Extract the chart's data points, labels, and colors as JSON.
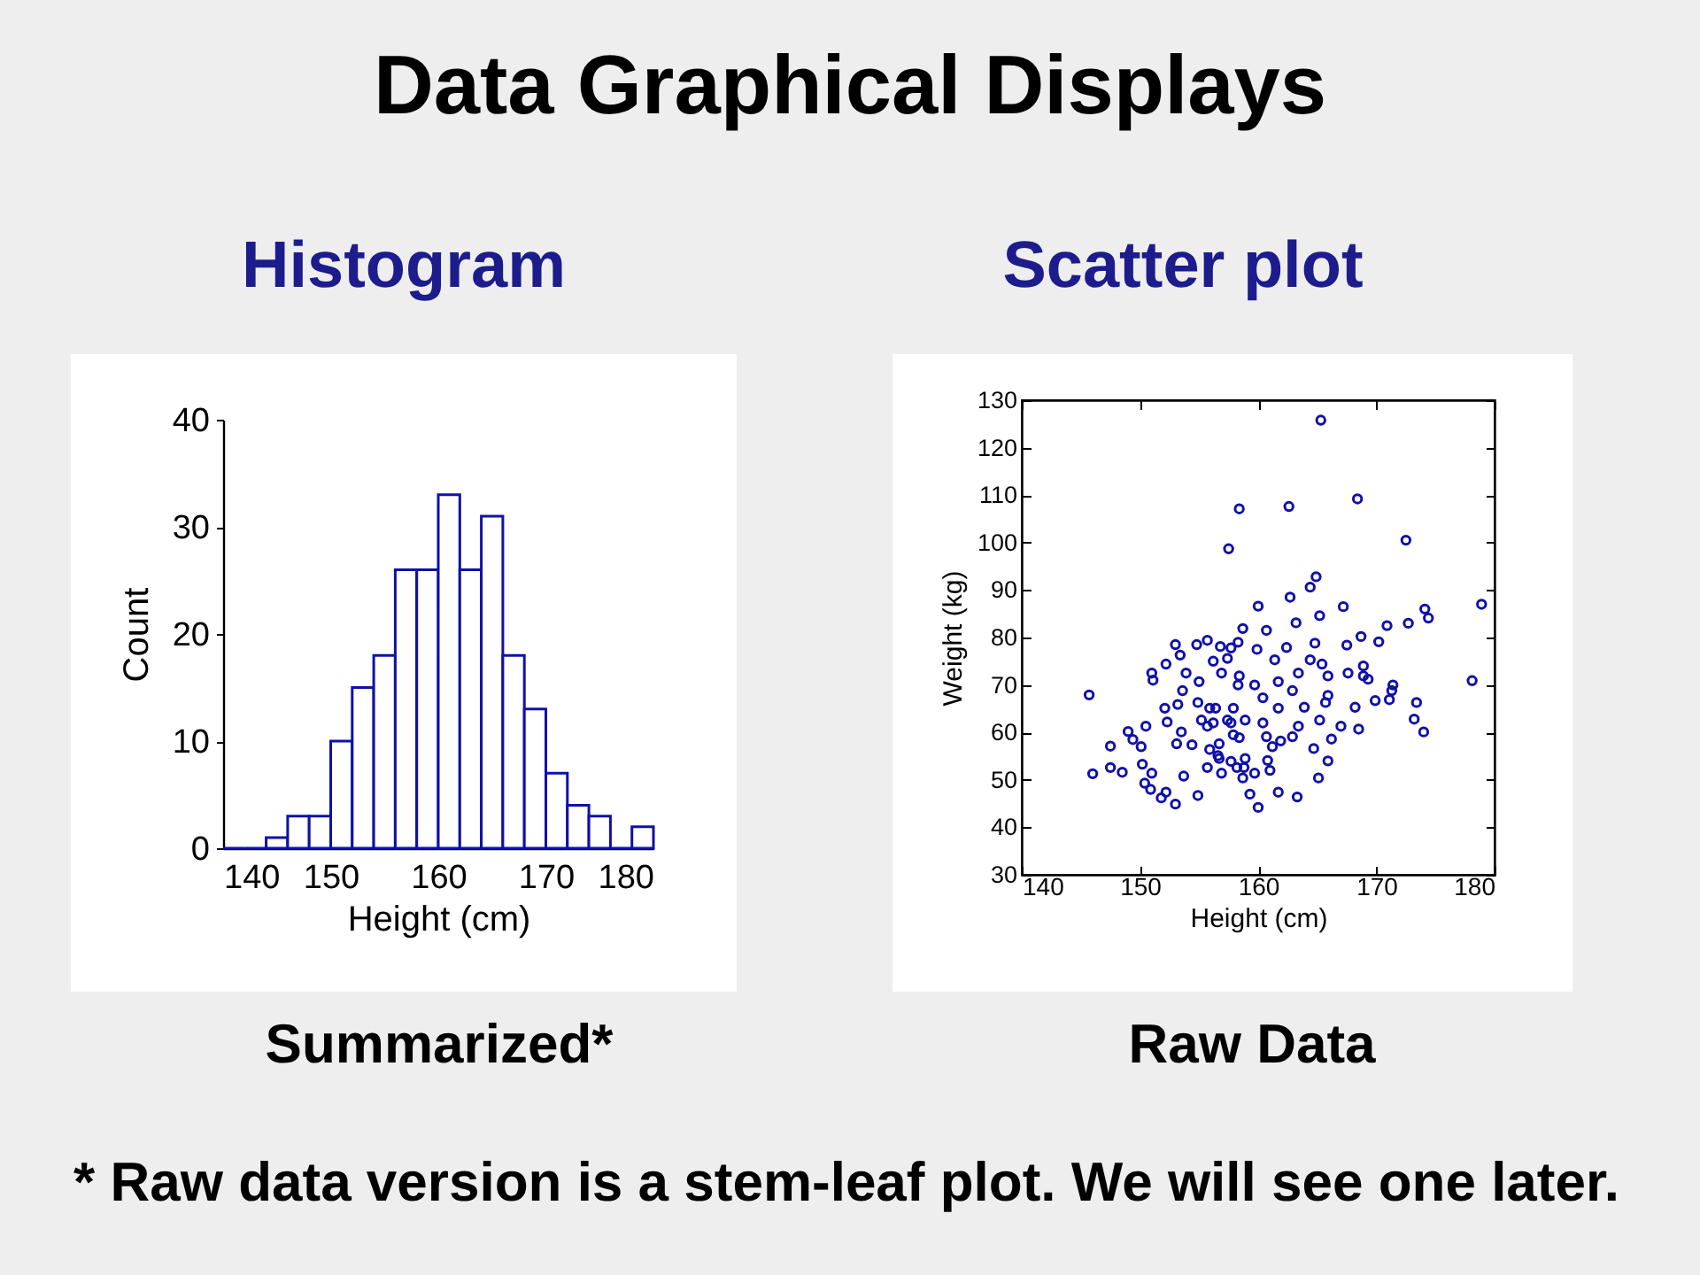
{
  "chart_data": [
    {
      "type": "other",
      "title": "Data Graphical Displays"
    },
    {
      "type": "histogram",
      "title": "Histogram",
      "xlabel": "Height (cm)",
      "ylabel": "Count",
      "color": "#1010a8",
      "bins": [
        140,
        142,
        144,
        146,
        148,
        150,
        152,
        154,
        156,
        158,
        160,
        162,
        164,
        166,
        168,
        170,
        172,
        174,
        176,
        178,
        180
      ],
      "values": [
        0,
        0,
        1,
        3,
        3,
        10,
        15,
        18,
        26,
        26,
        33,
        26,
        31,
        18,
        13,
        7,
        4,
        3,
        0,
        2
      ],
      "xlim": [
        140,
        180
      ],
      "xticks": [
        140,
        150,
        160,
        170,
        180
      ],
      "ylim": [
        0,
        40
      ],
      "yticks": [
        0,
        10,
        20,
        30,
        40
      ],
      "annotations": [
        "Summarized*",
        "* Raw data version is a stem-leaf plot. We will see one later."
      ]
    },
    {
      "type": "scatter",
      "title": "Scatter plot",
      "xlabel": "Height (cm)",
      "ylabel": "Weight (kg)",
      "color": "#1010a8",
      "marker": "circle",
      "x": [
        145.7,
        146.0,
        147.5,
        147.5,
        148.5,
        149.0,
        149.4,
        150.1,
        150.5,
        150.2,
        150.4,
        151.0,
        150.9,
        151.0,
        151.1,
        152.2,
        152.1,
        152.3,
        152.2,
        151.8,
        153.0,
        153.0,
        153.4,
        153.6,
        153.2,
        153.1,
        153.7,
        153.9,
        153.5,
        154.8,
        155.0,
        154.9,
        154.9,
        154.4,
        155.2,
        155.7,
        155.9,
        156.2,
        155.7,
        156.8,
        156.2,
        156.6,
        156.7,
        156.9,
        157.4,
        157.7,
        157.5,
        158.4,
        157.4,
        157.7,
        158.2,
        158.3,
        158.3,
        158.7,
        157.9,
        165.3,
        162.6,
        168.4,
        172.5,
        178.9,
        174.1,
        174.4,
        172.7,
        170.9,
        167.2,
        164.9,
        164.4,
        162.7,
        160.0,
        163.2,
        160.7,
        165.2,
        168.7,
        170.2,
        167.5,
        164.8,
        162.4,
        159.9,
        161.4,
        164.4,
        167.6,
        168.9,
        168.9,
        169.3,
        171.4,
        171.3,
        169.9,
        171.1,
        173.4,
        178.1,
        173.2,
        174.0,
        168.2,
        168.5,
        167.0,
        165.9,
        165.9,
        165.4,
        163.4,
        162.9,
        161.7,
        159.7,
        158.4,
        160.4,
        161.7,
        163.9,
        165.7,
        156.9,
        156.4,
        157.9,
        157.7,
        158.9,
        160.4,
        163.4,
        165.2,
        155.7,
        158.4,
        160.7,
        161.9,
        162.9,
        166.2,
        164.7,
        155.9,
        156.7,
        158.9,
        161.2,
        158.8,
        160.8,
        165.9,
        161.0,
        158.7,
        159.7,
        165.1,
        159.3,
        161.7,
        163.3,
        160.0
      ],
      "values": [
        67.9,
        51.3,
        57.1,
        52.6,
        51.6,
        60.2,
        58.5,
        57.0,
        61.3,
        53.3,
        49.3,
        51.4,
        48.0,
        72.5,
        71.0,
        74.4,
        65.1,
        62.2,
        47.4,
        46.2,
        44.9,
        78.5,
        76.3,
        68.8,
        65.9,
        57.6,
        50.8,
        72.5,
        60.1,
        78.5,
        70.7,
        66.3,
        46.7,
        57.4,
        62.6,
        79.4,
        65.1,
        62.0,
        52.6,
        78.1,
        75.0,
        55.1,
        57.6,
        51.4,
        75.6,
        77.8,
        98.7,
        107.1,
        62.6,
        53.9,
        52.6,
        79.0,
        70.0,
        81.9,
        59.5,
        125.8,
        107.6,
        109.2,
        100.5,
        87.0,
        86.0,
        84.1,
        83.0,
        82.5,
        86.5,
        92.8,
        90.6,
        88.5,
        86.6,
        83.1,
        81.5,
        84.6,
        80.2,
        79.1,
        78.4,
        78.8,
        77.9,
        77.5,
        75.3,
        75.3,
        72.5,
        71.9,
        74.0,
        71.2,
        70.0,
        68.8,
        66.7,
        66.9,
        66.3,
        70.9,
        62.8,
        60.1,
        65.3,
        60.7,
        61.3,
        71.9,
        67.8,
        74.4,
        72.5,
        68.8,
        70.7,
        70.0,
        71.9,
        67.3,
        65.1,
        65.3,
        66.3,
        72.5,
        65.1,
        65.1,
        62.0,
        62.6,
        62.0,
        61.3,
        62.6,
        61.3,
        58.9,
        59.1,
        58.2,
        59.1,
        58.6,
        56.6,
        56.4,
        54.5,
        54.5,
        57.0,
        52.6,
        54.1,
        54.0,
        52.0,
        50.4,
        51.4,
        50.4,
        47.0,
        47.4,
        46.4,
        44.2
      ],
      "xlim": [
        140,
        180
      ],
      "xticks": [
        140,
        150,
        160,
        170,
        180
      ],
      "ylim": [
        30,
        130
      ],
      "yticks": [
        30,
        40,
        50,
        60,
        70,
        80,
        90,
        100,
        110,
        120,
        130
      ],
      "annotations": [
        "Raw Data"
      ]
    }
  ]
}
